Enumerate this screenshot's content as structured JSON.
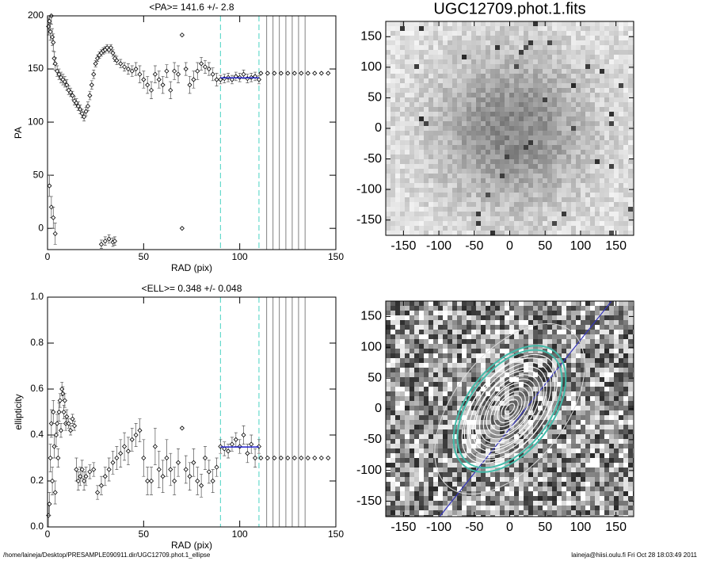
{
  "chart_data": [
    {
      "type": "scatter",
      "title": "<PA>= 141.6 +/-   2.8",
      "xlabel": "RAD (pix)",
      "ylabel": "PA",
      "xlim": [
        0,
        150
      ],
      "ylim": [
        -20,
        200
      ],
      "xticks": [
        0,
        50,
        100,
        150
      ],
      "yticks": [
        0,
        50,
        100,
        150,
        200
      ],
      "x": [
        0.5,
        1,
        1.5,
        2,
        2.5,
        3,
        3.5,
        4,
        1,
        2,
        3,
        4,
        5,
        6,
        7,
        8,
        9,
        10,
        11,
        12,
        13,
        14,
        15,
        16,
        17,
        18,
        19,
        20,
        21,
        22,
        23,
        24,
        25,
        26,
        27,
        28,
        29,
        30,
        31,
        32,
        33,
        34,
        35,
        28,
        30,
        32,
        34,
        35,
        36,
        38,
        40,
        42,
        44,
        46,
        48,
        50,
        52,
        54,
        56,
        58,
        60,
        62,
        64,
        66,
        68,
        70,
        70,
        72,
        74,
        76,
        78,
        80,
        82,
        84,
        86,
        88,
        90,
        92,
        94,
        96,
        98,
        100,
        102,
        104,
        106,
        108,
        110,
        111,
        114.5,
        118,
        121.5,
        125,
        128.5,
        132,
        135.5,
        139,
        142.5,
        146
      ],
      "y": [
        190,
        195,
        185,
        200,
        180,
        175,
        160,
        155,
        40,
        20,
        10,
        -5,
        148,
        145,
        142,
        140,
        138,
        135,
        130,
        128,
        125,
        120,
        118,
        115,
        112,
        108,
        105,
        110,
        115,
        125,
        135,
        145,
        155,
        160,
        163,
        165,
        167,
        168,
        170,
        168,
        170,
        165,
        160,
        -15,
        -12,
        -10,
        -13,
        -12,
        158,
        155,
        152,
        150,
        148,
        150,
        145,
        140,
        135,
        130,
        145,
        140,
        135,
        148,
        130,
        148,
        145,
        182,
        0,
        150,
        135,
        140,
        148,
        155,
        152,
        150,
        145,
        140,
        140,
        141,
        142,
        140,
        143,
        142,
        145,
        141,
        142,
        143,
        140,
        146,
        146,
        146,
        146,
        146,
        146,
        146,
        146,
        146,
        146,
        146
      ],
      "errors": [
        8,
        8,
        8,
        8,
        8,
        8,
        6,
        6,
        10,
        10,
        10,
        10,
        5,
        5,
        5,
        5,
        5,
        5,
        4,
        4,
        4,
        4,
        4,
        4,
        4,
        4,
        4,
        4,
        4,
        4,
        4,
        4,
        3,
        3,
        3,
        3,
        3,
        3,
        3,
        3,
        3,
        3,
        3,
        4,
        4,
        4,
        4,
        4,
        4,
        4,
        4,
        5,
        5,
        6,
        8,
        8,
        8,
        8,
        8,
        8,
        8,
        6,
        8,
        8,
        8,
        0,
        0,
        6,
        8,
        8,
        8,
        6,
        6,
        6,
        6,
        6,
        4,
        4,
        4,
        4,
        4,
        4,
        4,
        4,
        4,
        4,
        4,
        0,
        0,
        0,
        0,
        0,
        0,
        0,
        0,
        0,
        0,
        0
      ],
      "color": "#000000",
      "markers": [
        90,
        110
      ],
      "marker_color": "#66d9cc",
      "boundaries": [
        114,
        117.3,
        120.6,
        124,
        127.3,
        130.6,
        134
      ],
      "boundary_color": "#808080",
      "fit_range": [
        90,
        110
      ],
      "fit_value": 141.6,
      "fit_color": "#2222cc"
    },
    {
      "type": "scatter",
      "title": "<ELL>= 0.348 +/-  0.048",
      "xlabel": "RAD (pix)",
      "ylabel": "ellipticity",
      "xlim": [
        0,
        150
      ],
      "ylim": [
        0,
        1
      ],
      "xticks": [
        0,
        50,
        100,
        150
      ],
      "yticks": [
        {
          "value": 0,
          "label": "0.0"
        },
        0.2,
        0.4,
        0.6,
        0.8,
        {
          "value": 1,
          "label": "1.0"
        }
      ],
      "x": [
        0.5,
        1,
        1.5,
        2,
        2.5,
        3,
        3.5,
        4,
        4.5,
        5,
        5.5,
        6,
        6.5,
        7,
        7.5,
        8,
        8.5,
        9,
        9.5,
        10,
        11,
        12,
        13,
        14,
        15,
        16,
        17,
        18,
        19,
        20,
        22,
        24,
        26,
        28,
        30,
        32,
        34,
        36,
        38,
        40,
        42,
        44,
        46,
        48,
        50,
        52,
        54,
        56,
        58,
        60,
        62,
        64,
        66,
        68,
        70,
        72,
        74,
        76,
        78,
        80,
        82,
        84,
        86,
        88,
        90,
        92,
        94,
        96,
        98,
        100,
        102,
        104,
        106,
        108,
        110,
        111,
        114.5,
        118,
        121.5,
        125,
        128.5,
        132,
        135.5,
        139,
        142.5,
        146
      ],
      "y": [
        0.05,
        0.1,
        0.3,
        0.45,
        0.2,
        0.5,
        0.35,
        0.15,
        0.4,
        0.45,
        0.3,
        0.5,
        0.55,
        0.42,
        0.6,
        0.58,
        0.5,
        0.55,
        0.45,
        0.48,
        0.45,
        0.42,
        0.47,
        0.44,
        0.25,
        0.2,
        0.22,
        0.25,
        0.2,
        0.22,
        0.24,
        0.25,
        0.15,
        0.18,
        0.22,
        0.25,
        0.28,
        0.3,
        0.32,
        0.35,
        0.33,
        0.38,
        0.4,
        0.42,
        0.3,
        0.2,
        0.2,
        0.35,
        0.25,
        0.22,
        0.3,
        0.25,
        0.2,
        0.28,
        0.43,
        0.25,
        0.22,
        0.28,
        0.2,
        0.18,
        0.3,
        0.24,
        0.2,
        0.26,
        0.35,
        0.34,
        0.33,
        0.36,
        0.38,
        0.35,
        0.4,
        0.32,
        0.36,
        0.3,
        0.35,
        0.3,
        0.3,
        0.3,
        0.3,
        0.3,
        0.3,
        0.3,
        0.3,
        0.3,
        0.3,
        0.3
      ],
      "errors": [
        0.05,
        0.05,
        0.06,
        0.06,
        0.06,
        0.05,
        0.05,
        0.05,
        0.05,
        0.04,
        0.04,
        0.04,
        0.03,
        0.03,
        0.03,
        0.03,
        0.03,
        0.03,
        0.03,
        0.03,
        0.02,
        0.02,
        0.02,
        0.02,
        0.05,
        0.04,
        0.04,
        0.04,
        0.04,
        0.04,
        0.03,
        0.03,
        0.03,
        0.04,
        0.04,
        0.05,
        0.05,
        0.05,
        0.06,
        0.06,
        0.06,
        0.05,
        0.05,
        0.05,
        0.08,
        0.06,
        0.06,
        0.08,
        0.08,
        0.07,
        0.08,
        0.07,
        0.06,
        0.06,
        0,
        0.06,
        0.06,
        0.06,
        0.06,
        0.05,
        0.05,
        0.05,
        0.05,
        0.04,
        0.03,
        0.03,
        0.03,
        0.03,
        0.03,
        0.03,
        0.04,
        0.04,
        0.04,
        0.04,
        0.03,
        0,
        0,
        0,
        0,
        0,
        0,
        0,
        0,
        0,
        0,
        0
      ],
      "color": "#000000",
      "markers": [
        90,
        110
      ],
      "marker_color": "#66d9cc",
      "boundaries": [
        114,
        117.3,
        120.6,
        124,
        127.3,
        130.6,
        134
      ],
      "boundary_color": "#808080",
      "fit_range": [
        90,
        110
      ],
      "fit_value": 0.348,
      "fit_color": "#2222cc"
    },
    {
      "type": "image",
      "title": "UGC12709.phot.1.fits",
      "xlim": [
        -175,
        175
      ],
      "ylim": [
        -175,
        175
      ],
      "xticks": [
        -150,
        -100,
        -50,
        0,
        50,
        100,
        150
      ],
      "yticks": [
        -150,
        -100,
        -50,
        0,
        50,
        100,
        150
      ]
    },
    {
      "type": "image",
      "xlim": [
        -175,
        175
      ],
      "ylim": [
        -175,
        175
      ],
      "xticks": [
        -150,
        -100,
        -50,
        0,
        50,
        100,
        150
      ],
      "yticks": [
        -150,
        -100,
        -50,
        0,
        50,
        100,
        150
      ],
      "contours": true
    }
  ],
  "footer": {
    "left": "/home/laineja/Desktop/PRESAMPLE090911.dir/UGC12709.phot.1_ellipse",
    "right": "laineja@hiisi.oulu.fi  Fri Oct 28 18:03:49 2011"
  }
}
